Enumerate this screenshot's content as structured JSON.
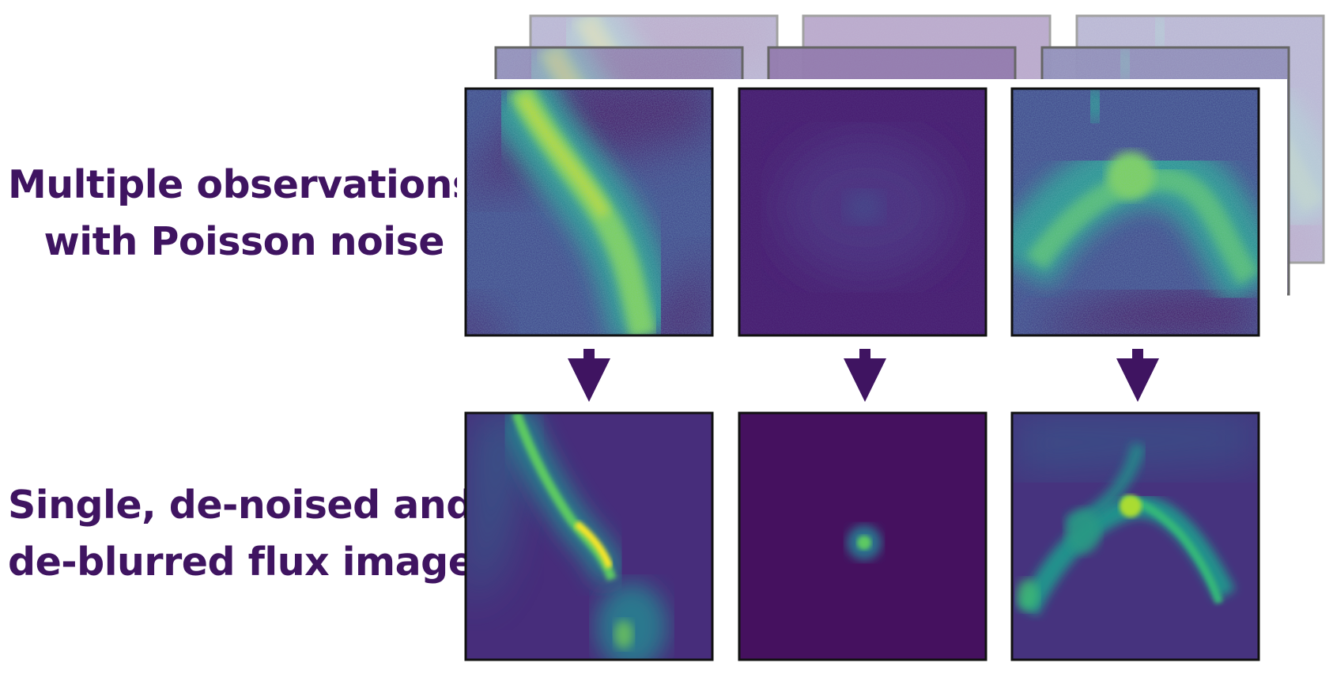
{
  "labels": {
    "observations_line1": "Multiple observations",
    "observations_line2": "with Poisson noise",
    "result_line1": "Single, de-noised and",
    "result_line2": "de-blurred flux image"
  },
  "colors": {
    "text": "#3f1461",
    "arrow": "#3f1461",
    "viridis_dark": "#440154",
    "viridis_blue": "#3b528b",
    "viridis_teal": "#21908d",
    "viridis_green": "#5dc962",
    "viridis_yellow": "#fde725",
    "ghost_stack": "#8a6aa8"
  },
  "panels": [
    {
      "id": "observation-1",
      "row": "observations",
      "pattern": "diagonal-filament"
    },
    {
      "id": "observation-2",
      "row": "observations",
      "pattern": "faint-blob"
    },
    {
      "id": "observation-3",
      "row": "observations",
      "pattern": "arc"
    },
    {
      "id": "flux-1",
      "row": "result",
      "pattern": "diagonal-filament"
    },
    {
      "id": "flux-2",
      "row": "result",
      "pattern": "point-source"
    },
    {
      "id": "flux-3",
      "row": "result",
      "pattern": "arc"
    }
  ],
  "arrows": [
    {
      "id": "arrow-1",
      "direction": "down"
    },
    {
      "id": "arrow-2",
      "direction": "down"
    },
    {
      "id": "arrow-3",
      "direction": "down"
    }
  ]
}
